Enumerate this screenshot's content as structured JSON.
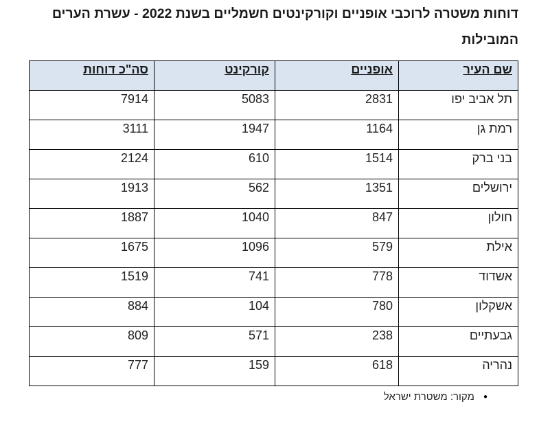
{
  "title": {
    "line1": "דוחות משטרה לרוכבי אופניים וקורקינטים חשמליים בשנת 2022 - עשרת הערים",
    "line2": "המובילות",
    "full_text": "דוחות משטרה לרוכבי אופניים וקורקינטים חשמליים בשנת 2022 - עשרת הערים המובילות"
  },
  "table": {
    "headers": [
      "שם העיר",
      "אופניים",
      "קורקינט",
      "סה\"כ דוחות"
    ],
    "rows": [
      {
        "city": "תל אביב יפו",
        "bicycles": "2831",
        "scooter": "5083",
        "total": "7914"
      },
      {
        "city": "רמת גן",
        "bicycles": "1164",
        "scooter": "1947",
        "total": "3111"
      },
      {
        "city": "בני ברק",
        "bicycles": "1514",
        "scooter": "610",
        "total": "2124"
      },
      {
        "city": "ירושלים",
        "bicycles": "1351",
        "scooter": "562",
        "total": "1913"
      },
      {
        "city": "חולון",
        "bicycles": "847",
        "scooter": "1040",
        "total": "1887"
      },
      {
        "city": "אילת",
        "bicycles": "579",
        "scooter": "1096",
        "total": "1675"
      },
      {
        "city": "אשדוד",
        "bicycles": "778",
        "scooter": "741",
        "total": "1519"
      },
      {
        "city": "אשקלון",
        "bicycles": "780",
        "scooter": "104",
        "total": "884"
      },
      {
        "city": "גבעתיים",
        "bicycles": "238",
        "scooter": "571",
        "total": "809"
      },
      {
        "city": "נהריה",
        "bicycles": "618",
        "scooter": "159",
        "total": "777"
      }
    ]
  },
  "footer": {
    "bullet": "●",
    "source_text": "מקור: משטרת ישראל"
  },
  "colors": {
    "header_background": "#d9e4f0",
    "border": "#000000",
    "text": "#1a1a1a",
    "page_background": "#ffffff"
  }
}
